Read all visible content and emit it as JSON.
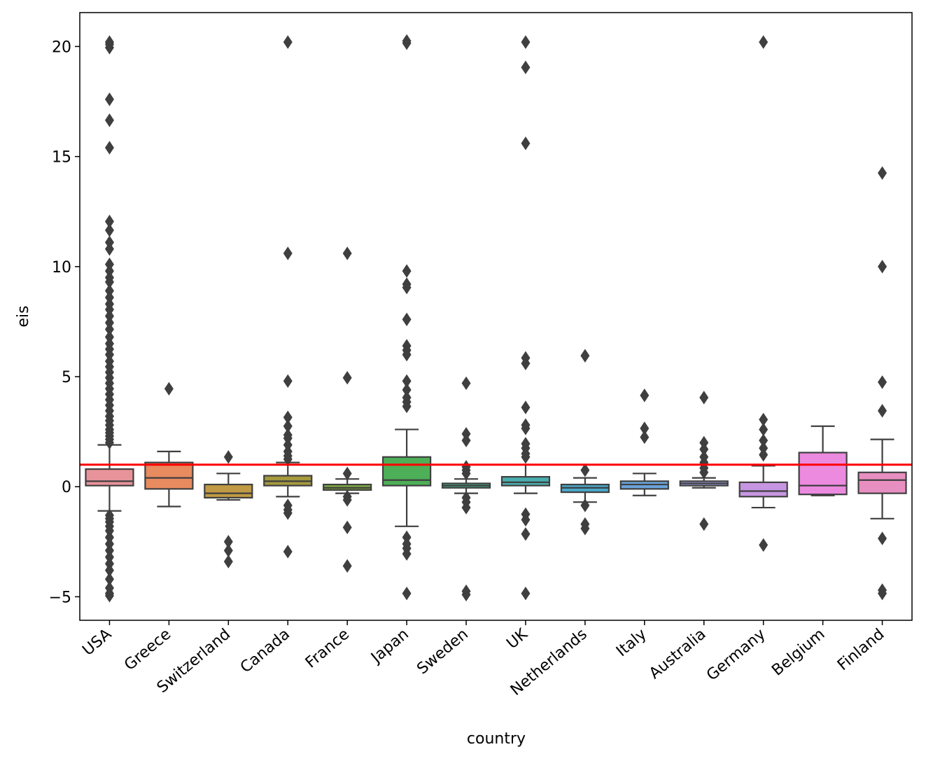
{
  "chart_data": {
    "type": "box",
    "title": "",
    "xlabel": "country",
    "ylabel": "eis",
    "ylim": [
      -6.2,
      21.5
    ],
    "yticks": [
      -5,
      0,
      5,
      10,
      15,
      20
    ],
    "ytick_labels": [
      "−5",
      "0",
      "5",
      "10",
      "15",
      "20"
    ],
    "grid": false,
    "reference_line": {
      "y": 1.0,
      "color": "#ff0000"
    },
    "categories": [
      "USA",
      "Greece",
      "Switzerland",
      "Canada",
      "France",
      "Japan",
      "Sweden",
      "UK",
      "Netherlands",
      "Italy",
      "Australia",
      "Germany",
      "Belgium",
      "Finland"
    ],
    "boxes": [
      {
        "name": "USA",
        "color": "#e8939a",
        "whislo": -1.1,
        "q1": 0.05,
        "med": 0.25,
        "q3": 0.8,
        "whishi": 1.9,
        "fliers": [
          20.2,
          20.1,
          19.95,
          17.6,
          16.65,
          15.4,
          12.05,
          11.65,
          11.1,
          10.8,
          10.1,
          9.8,
          9.5,
          9.3,
          8.9,
          8.6,
          8.3,
          8.05,
          7.75,
          7.45,
          7.15,
          6.8,
          6.5,
          6.25,
          6.0,
          5.7,
          5.45,
          5.2,
          4.95,
          4.7,
          4.45,
          4.2,
          3.95,
          3.7,
          3.45,
          3.2,
          3.0,
          2.8,
          2.6,
          2.45,
          2.3,
          2.15,
          2.0,
          -1.3,
          -1.45,
          -1.6,
          -1.8,
          -2.0,
          -2.3,
          -2.6,
          -2.9,
          -3.2,
          -3.5,
          -3.8,
          -4.2,
          -4.6,
          -4.85,
          -4.95
        ]
      },
      {
        "name": "Greece",
        "color": "#e88b5f",
        "whislo": -0.9,
        "q1": -0.1,
        "med": 0.4,
        "q3": 1.1,
        "whishi": 1.6,
        "fliers": [
          4.45
        ]
      },
      {
        "name": "Switzerland",
        "color": "#c09a44",
        "whislo": -0.6,
        "q1": -0.5,
        "med": -0.3,
        "q3": 0.1,
        "whishi": 0.6,
        "fliers": [
          1.35,
          -2.5,
          -2.9,
          -3.4
        ]
      },
      {
        "name": "Canada",
        "color": "#a59a3e",
        "whislo": -0.45,
        "q1": 0.05,
        "med": 0.25,
        "q3": 0.5,
        "whishi": 1.1,
        "fliers": [
          20.2,
          10.6,
          4.8,
          3.15,
          2.75,
          2.35,
          2.2,
          1.9,
          1.6,
          1.4,
          1.25,
          -0.85,
          -1.05,
          -1.2,
          -2.95
        ]
      },
      {
        "name": "France",
        "color": "#7fa941",
        "whislo": -0.3,
        "q1": -0.15,
        "med": -0.05,
        "q3": 0.1,
        "whishi": 0.35,
        "fliers": [
          10.6,
          4.95,
          0.6,
          -0.45,
          -0.6,
          -1.85,
          -3.6
        ]
      },
      {
        "name": "Japan",
        "color": "#4daf57",
        "whislo": -1.8,
        "q1": 0.05,
        "med": 0.3,
        "q3": 1.35,
        "whishi": 2.6,
        "fliers": [
          20.25,
          20.15,
          9.8,
          9.2,
          9.05,
          7.6,
          6.4,
          6.2,
          6.0,
          4.8,
          4.4,
          4.05,
          3.85,
          3.65,
          -2.3,
          -2.6,
          -2.8,
          -3.05,
          -4.85
        ]
      },
      {
        "name": "Sweden",
        "color": "#46ad8f",
        "whislo": -0.3,
        "q1": -0.05,
        "med": 0.05,
        "q3": 0.15,
        "whishi": 0.35,
        "fliers": [
          4.7,
          2.4,
          2.1,
          0.9,
          0.75,
          0.6,
          -0.5,
          -0.7,
          -0.95,
          -4.75,
          -4.9
        ]
      },
      {
        "name": "UK",
        "color": "#48aeb0",
        "whislo": -0.3,
        "q1": 0.05,
        "med": 0.2,
        "q3": 0.45,
        "whishi": 1.0,
        "fliers": [
          20.2,
          19.05,
          15.6,
          5.85,
          5.6,
          3.6,
          2.8,
          2.65,
          1.95,
          1.75,
          1.5,
          1.35,
          -1.25,
          -1.5,
          -2.15,
          -4.85
        ]
      },
      {
        "name": "Netherlands",
        "color": "#4ba8cb",
        "whislo": -0.7,
        "q1": -0.25,
        "med": -0.05,
        "q3": 0.1,
        "whishi": 0.4,
        "fliers": [
          5.95,
          0.75,
          -0.85,
          -1.7,
          -1.9
        ]
      },
      {
        "name": "Italy",
        "color": "#6aa5dc",
        "whislo": -0.4,
        "q1": -0.1,
        "med": 0.1,
        "q3": 0.25,
        "whishi": 0.6,
        "fliers": [
          4.15,
          2.65,
          2.25
        ]
      },
      {
        "name": "Australia",
        "color": "#9d9fe3",
        "whislo": -0.05,
        "q1": 0.05,
        "med": 0.15,
        "q3": 0.25,
        "whishi": 0.4,
        "fliers": [
          4.05,
          2.0,
          1.7,
          1.35,
          1.1,
          0.85,
          0.65,
          -1.7
        ]
      },
      {
        "name": "Germany",
        "color": "#c796e2",
        "whislo": -0.95,
        "q1": -0.45,
        "med": -0.2,
        "q3": 0.2,
        "whishi": 0.95,
        "fliers": [
          20.2,
          3.05,
          2.6,
          2.1,
          1.75,
          1.45,
          -2.65
        ]
      },
      {
        "name": "Belgium",
        "color": "#ec8ae0",
        "whislo": -0.4,
        "q1": -0.35,
        "med": 0.05,
        "q3": 1.55,
        "whishi": 2.75,
        "fliers": []
      },
      {
        "name": "Finland",
        "color": "#e88fc2",
        "whislo": -1.45,
        "q1": -0.3,
        "med": 0.3,
        "q3": 0.65,
        "whishi": 2.15,
        "fliers": [
          14.25,
          10.0,
          4.75,
          3.45,
          -2.35,
          -4.7,
          -4.85
        ]
      }
    ]
  }
}
